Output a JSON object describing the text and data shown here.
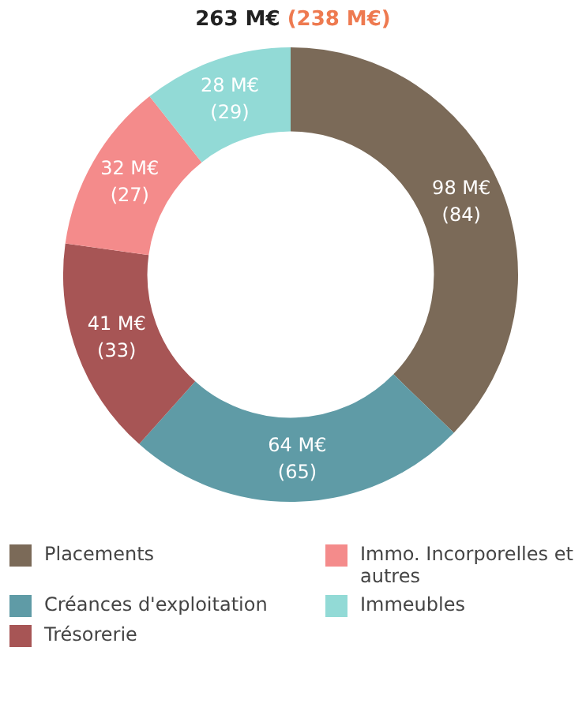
{
  "chart_data": {
    "type": "donut",
    "title": "263 M€",
    "subtitle": "(238 M€)",
    "categories": [
      "Placements",
      "Créances d'exploitation",
      "Trésorerie",
      "Immo. Incorporelles et autres",
      "Immeubles"
    ],
    "values": [
      98,
      64,
      41,
      32,
      28
    ],
    "colors": [
      "#7b6a58",
      "#5f9ba6",
      "#a75555",
      "#f48b8b",
      "#92dad6"
    ],
    "value_labels": [
      "98 M€\n(84)",
      "64 M€\n(65)",
      "41 M€\n(33)",
      "32 M€\n(27)",
      "28 M€\n(29)"
    ],
    "legend": "bottom"
  }
}
